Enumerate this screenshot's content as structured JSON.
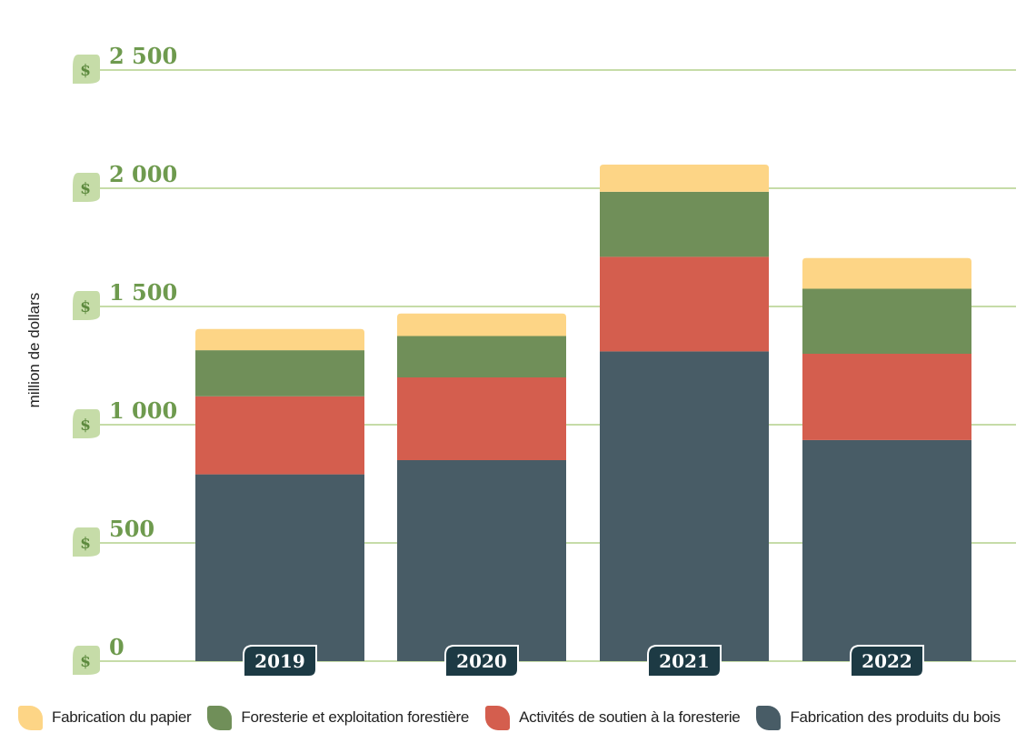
{
  "chart_data": {
    "type": "bar",
    "stacked": true,
    "categories": [
      "2019",
      "2020",
      "2021",
      "2022"
    ],
    "series": [
      {
        "name": "Fabrication des produits du bois",
        "color": "#485c66",
        "values": [
          790,
          850,
          1310,
          935
        ]
      },
      {
        "name": "Activités de soutien à la foresterie",
        "color": "#d45e4e",
        "values": [
          330,
          350,
          400,
          365
        ]
      },
      {
        "name": "Foresterie et exploitation forestière",
        "color": "#708f59",
        "values": [
          195,
          175,
          275,
          275
        ]
      },
      {
        "name": "Fabrication du papier",
        "color": "#fdd586",
        "values": [
          90,
          95,
          115,
          130
        ]
      }
    ],
    "legend_order": [
      3,
      2,
      1,
      0
    ],
    "ylabel": "million de dollars",
    "ylim": [
      0,
      2500
    ],
    "yticks": [
      0,
      500,
      1000,
      1500,
      2000,
      2500
    ],
    "ytick_labels": [
      "0",
      "500",
      "1 000",
      "1 500",
      "2 000",
      "2 500"
    ],
    "ytick_prefix": "$",
    "grid": true,
    "legend_position": "bottom"
  },
  "colors": {
    "grid": "#c6dca8",
    "tick_badge": "#c6dca8",
    "year_badge": "#1d3a44"
  }
}
